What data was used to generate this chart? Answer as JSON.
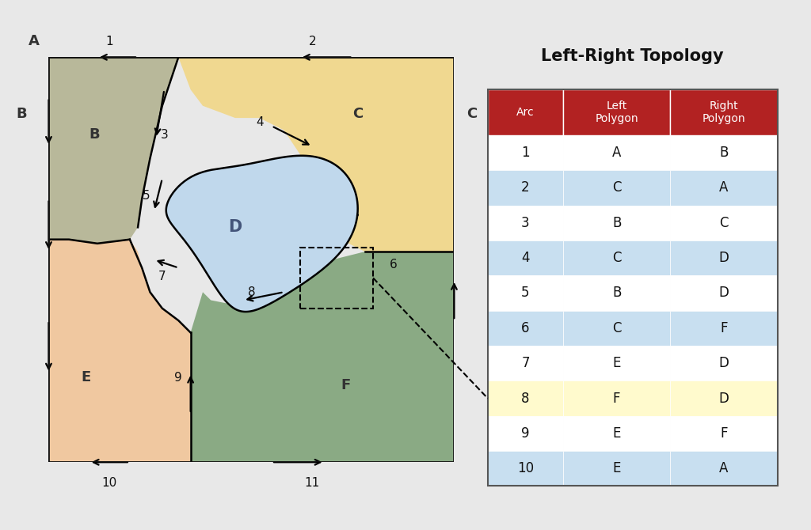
{
  "title": "Left-Right Topology",
  "table_data": [
    [
      "1",
      "A",
      "B"
    ],
    [
      "2",
      "C",
      "A"
    ],
    [
      "3",
      "B",
      "C"
    ],
    [
      "4",
      "C",
      "D"
    ],
    [
      "5",
      "B",
      "D"
    ],
    [
      "6",
      "C",
      "F"
    ],
    [
      "7",
      "E",
      "D"
    ],
    [
      "8",
      "F",
      "D"
    ],
    [
      "9",
      "E",
      "F"
    ],
    [
      "10",
      "E",
      "A"
    ]
  ],
  "col_headers": [
    "Arc",
    "Left\nPolygon",
    "Right\nPolygon"
  ],
  "header_color": "#b22222",
  "header_text_color": "#ffffff",
  "row_colors_even": "#ffffff",
  "row_colors_odd": "#c8dff0",
  "highlight_row": 7,
  "highlight_color": "#fffacd",
  "fig_bg": "#e8e8e8",
  "polygon_B": "#b8b89a",
  "polygon_C": "#f0d890",
  "polygon_D": "#c0d8ec",
  "polygon_E": "#f0c8a0",
  "polygon_F": "#8aaa84",
  "border_color": "#111111"
}
